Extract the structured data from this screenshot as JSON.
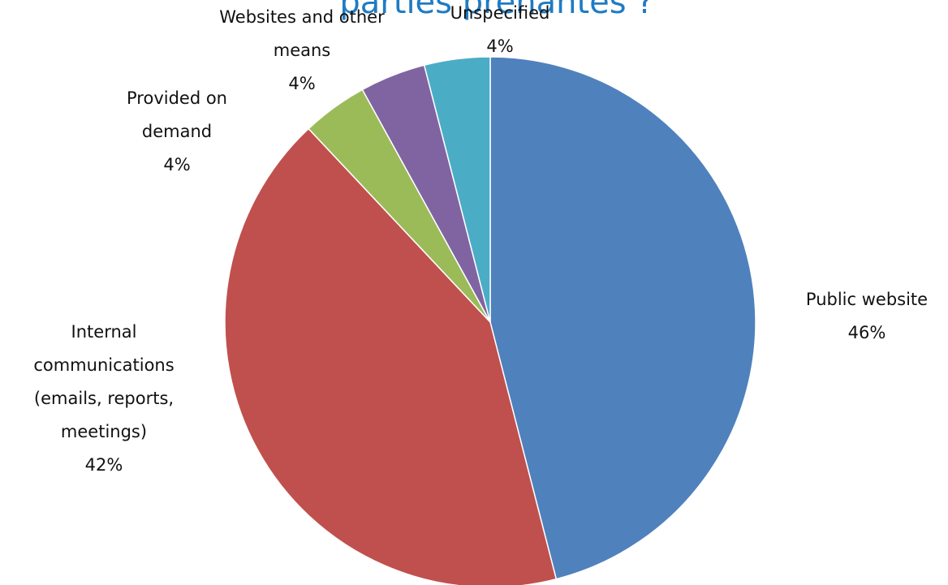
{
  "chart_data": {
    "type": "pie",
    "title": "parties prenantes ?",
    "categories": [
      "Public website",
      "Internal communications (emails, reports, meetings)",
      "Provided on demand",
      "Websites and other means",
      "Unspecified"
    ],
    "values": [
      46,
      42,
      4,
      4,
      4
    ],
    "value_labels": [
      "46%",
      "42%",
      "4%",
      "4%",
      "4%"
    ],
    "colors": [
      "#4f81bd",
      "#c0504d",
      "#9bbb59",
      "#8064a2",
      "#4bacc6"
    ]
  }
}
